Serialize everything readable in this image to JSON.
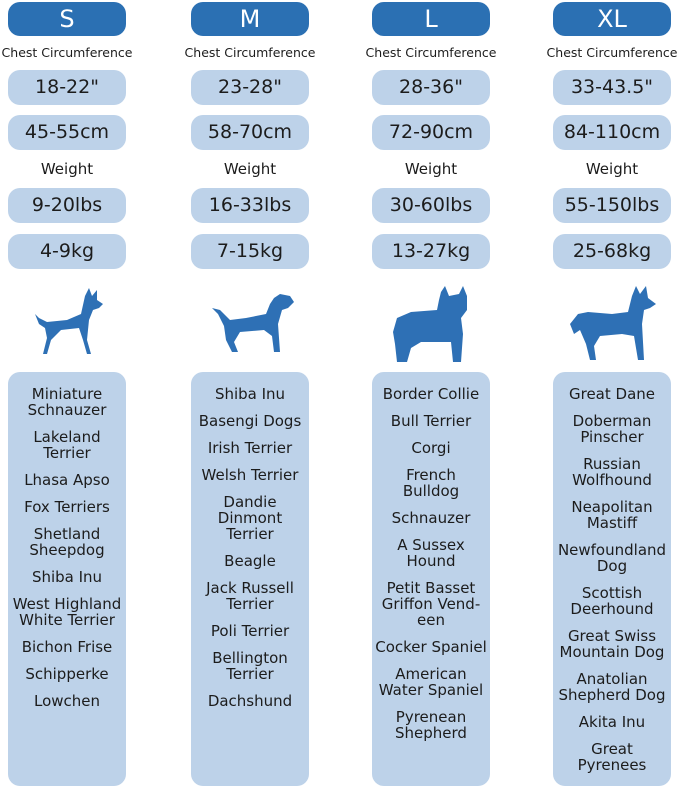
{
  "colors": {
    "header": "#2b70b3",
    "pill": "#bdd2e9",
    "dog": "#2e70b5",
    "panel": "#bdd2e9"
  },
  "labels": {
    "chest": "Chest Circumference",
    "weight": "Weight"
  },
  "sizes": [
    {
      "size": "S",
      "chest_in": "18-22\"",
      "chest_cm": "45-55cm",
      "weight_lbs": "9-20lbs",
      "weight_kg": "4-9kg",
      "dog_icon": "chihuahua-silhouette-icon",
      "breeds": [
        "Miniature\nSchnauzer",
        "Lakeland\nTerrier",
        "Lhasa Apso",
        "Fox Terriers",
        "Shetland\nSheepdog",
        "Shiba Inu",
        "West Highland\nWhite Terrier",
        "Bichon Frise",
        "Schipperke",
        "Lowchen"
      ]
    },
    {
      "size": "M",
      "chest_in": "23-28\"",
      "chest_cm": "58-70cm",
      "weight_lbs": "16-33lbs",
      "weight_kg": "7-15kg",
      "dog_icon": "terrier-silhouette-icon",
      "breeds": [
        "Shiba Inu",
        "Basengi Dogs",
        "Irish Terrier",
        "Welsh Terrier",
        "Dandie\nDinmont\nTerrier",
        "Beagle",
        "Jack Russell\nTerrier",
        "Poli Terrier",
        "Bellington\nTerrier",
        "Dachshund"
      ]
    },
    {
      "size": "L",
      "chest_in": "28-36\"",
      "chest_cm": "72-90cm",
      "weight_lbs": "30-60lbs",
      "weight_kg": "13-27kg",
      "dog_icon": "bulldog-silhouette-icon",
      "breeds": [
        "Border Collie",
        "Bull Terrier",
        "Corgi",
        "French\nBulldog",
        "Schnauzer",
        "A Sussex\nHound",
        "Petit Basset\nGriffon Vend-\neen",
        "Cocker Spaniel",
        "American\nWater Spaniel",
        "Pyrenean\nShepherd"
      ]
    },
    {
      "size": "XL",
      "chest_in": "33-43.5\"",
      "chest_cm": "84-110cm",
      "weight_lbs": "55-150lbs",
      "weight_kg": "25-68kg",
      "dog_icon": "husky-silhouette-icon",
      "breeds": [
        "Great Dane",
        "Doberman\nPinscher",
        "Russian\nWolfhound",
        "Neapolitan\nMastiff",
        "Newfoundland\nDog",
        "Scottish\nDeerhound",
        "Great Swiss\nMountain Dog",
        "Anatolian\nShepherd Dog",
        "Akita Inu",
        "Great\nPyrenees"
      ]
    }
  ]
}
